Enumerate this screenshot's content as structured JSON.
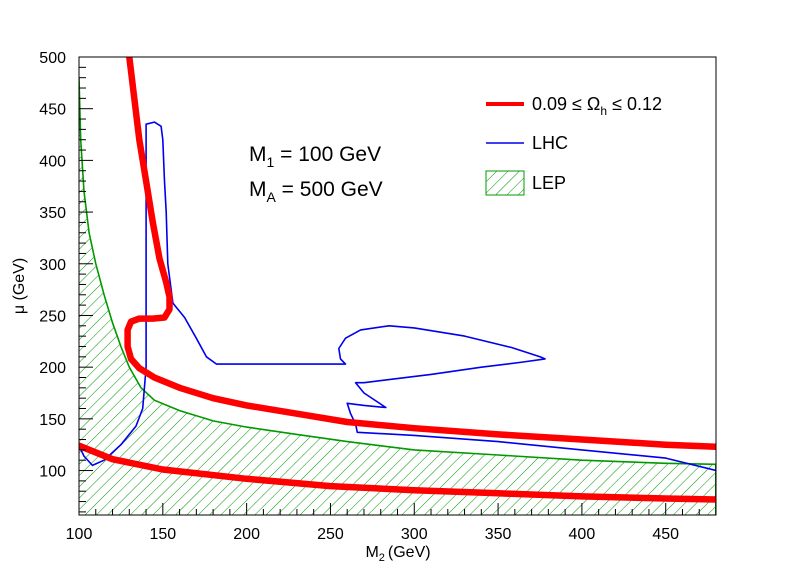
{
  "chart_data": {
    "type": "line",
    "xlabel": "M",
    "xlabel_sub": "2",
    "xlabel_unit": "(GeV)",
    "ylabel": "μ (GeV)",
    "xlim": [
      100,
      480
    ],
    "ylim": [
      57,
      500
    ],
    "x_ticks": [
      100,
      150,
      200,
      250,
      300,
      350,
      400,
      450
    ],
    "y_ticks": [
      100,
      150,
      200,
      250,
      300,
      350,
      400,
      450,
      500
    ],
    "annotations": [
      {
        "main": "M",
        "sub": "1",
        "rest": " = 100 GeV"
      },
      {
        "main": "M",
        "sub": "A",
        "rest": " = 500 GeV"
      }
    ],
    "legend": [
      {
        "name": "relic",
        "label_lhs": "0.09 ≤ Ω",
        "label_sub": "h",
        "label_rhs": " ≤ 0.12",
        "color": "#ff0000",
        "style": "thick-line"
      },
      {
        "name": "lhc",
        "label": "LHC",
        "color": "#0000ee",
        "style": "line"
      },
      {
        "name": "lep",
        "label": "LEP",
        "color": "#009900",
        "style": "hatched"
      }
    ],
    "series": [
      {
        "name": "relic-upper-branch",
        "color": "#ff0000",
        "points": [
          [
            130,
            500
          ],
          [
            133,
            460
          ],
          [
            136,
            420
          ],
          [
            140,
            380
          ],
          [
            144,
            340
          ],
          [
            148,
            305
          ],
          [
            152,
            282
          ],
          [
            154,
            268
          ],
          [
            154,
            256
          ],
          [
            151,
            248
          ],
          [
            144,
            247
          ],
          [
            136,
            247
          ],
          [
            131,
            244
          ],
          [
            129,
            236
          ],
          [
            129,
            220
          ],
          [
            131,
            208
          ],
          [
            136,
            199
          ],
          [
            145,
            190
          ],
          [
            160,
            180
          ],
          [
            180,
            170
          ],
          [
            200,
            163
          ],
          [
            230,
            155
          ],
          [
            260,
            147
          ],
          [
            300,
            141
          ],
          [
            350,
            135
          ],
          [
            400,
            130
          ],
          [
            450,
            125
          ],
          [
            480,
            123
          ]
        ]
      },
      {
        "name": "relic-lower-branch",
        "color": "#ff0000",
        "points": [
          [
            100,
            124
          ],
          [
            120,
            111
          ],
          [
            150,
            101
          ],
          [
            200,
            92
          ],
          [
            250,
            85
          ],
          [
            300,
            81
          ],
          [
            350,
            78
          ],
          [
            400,
            75
          ],
          [
            450,
            73
          ],
          [
            480,
            72
          ]
        ]
      },
      {
        "name": "lhc-contour",
        "color": "#0000ee",
        "points": [
          [
            100,
            124
          ],
          [
            103,
            114
          ],
          [
            108,
            105
          ],
          [
            115,
            110
          ],
          [
            125,
            125
          ],
          [
            134,
            143
          ],
          [
            138,
            160
          ],
          [
            140,
            200
          ],
          [
            140,
            250
          ],
          [
            140,
            300
          ],
          [
            140,
            350
          ],
          [
            140,
            400
          ],
          [
            140,
            435
          ],
          [
            145,
            437
          ],
          [
            149,
            433
          ],
          [
            150,
            420
          ],
          [
            151,
            380
          ],
          [
            152,
            350
          ],
          [
            153,
            300
          ],
          [
            156,
            262
          ],
          [
            163,
            248
          ],
          [
            170,
            228
          ],
          [
            176,
            210
          ],
          [
            182,
            203
          ],
          [
            200,
            203
          ],
          [
            230,
            203
          ],
          [
            259,
            203
          ],
          [
            256,
            208
          ],
          [
            255,
            218
          ],
          [
            259,
            228
          ],
          [
            268,
            236
          ],
          [
            285,
            240
          ],
          [
            300,
            238
          ],
          [
            330,
            230
          ],
          [
            358,
            219
          ],
          [
            375,
            210
          ],
          [
            378,
            208
          ],
          [
            365,
            205
          ],
          [
            340,
            200
          ],
          [
            310,
            193
          ],
          [
            285,
            188
          ],
          [
            270,
            185
          ],
          [
            265,
            185
          ],
          [
            270,
            175
          ],
          [
            283,
            161
          ],
          [
            270,
            163
          ],
          [
            260,
            165
          ],
          [
            262,
            155
          ],
          [
            265,
            145
          ],
          [
            266,
            137
          ],
          [
            300,
            134
          ],
          [
            350,
            128
          ],
          [
            400,
            120
          ],
          [
            450,
            112
          ],
          [
            480,
            100
          ]
        ]
      }
    ],
    "lep_region": {
      "boundary": [
        [
          100,
          480
        ],
        [
          101,
          420
        ],
        [
          103,
          370
        ],
        [
          106,
          330
        ],
        [
          110,
          300
        ],
        [
          115,
          270
        ],
        [
          120,
          243
        ],
        [
          125,
          220
        ],
        [
          130,
          200
        ],
        [
          137,
          180
        ],
        [
          145,
          168
        ],
        [
          160,
          158
        ],
        [
          180,
          148
        ],
        [
          200,
          142
        ],
        [
          230,
          135
        ],
        [
          260,
          128
        ],
        [
          300,
          120
        ],
        [
          350,
          115
        ],
        [
          400,
          110
        ],
        [
          450,
          107
        ],
        [
          480,
          106
        ]
      ],
      "fill": "hatched",
      "color": "#009900"
    }
  }
}
